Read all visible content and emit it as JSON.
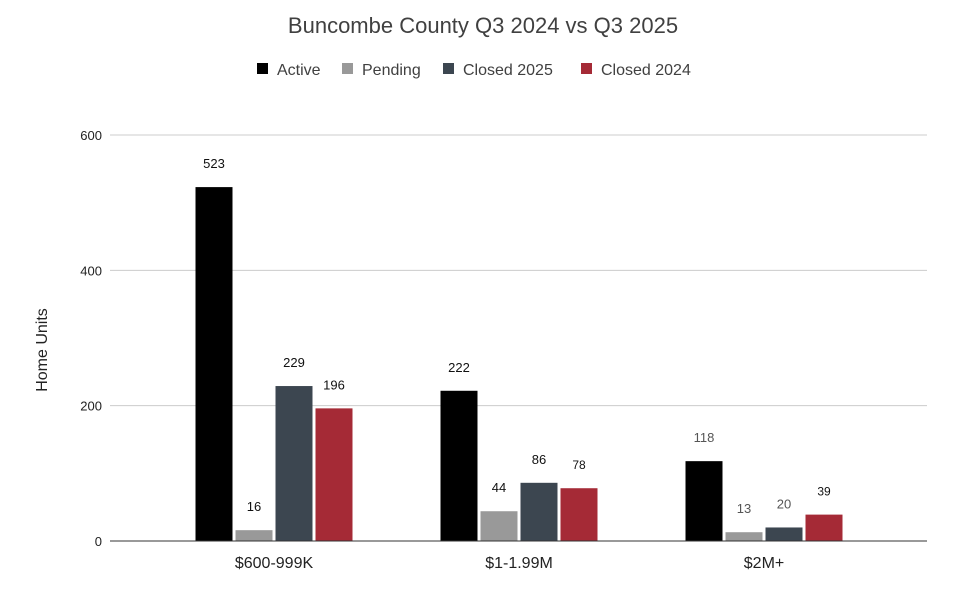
{
  "chart_data": {
    "type": "bar",
    "title": "Buncombe County Q3 2024 vs Q3 2025",
    "ylabel": "Home Units",
    "xlabel": "",
    "ylim": [
      0,
      600
    ],
    "yticks": [
      0,
      200,
      400,
      600
    ],
    "grid": true,
    "legend_position": "top",
    "categories": [
      "$600-999K",
      "$1-1.99M",
      "$2M+"
    ],
    "series": [
      {
        "name": "Active",
        "color": "#000000",
        "values": [
          523,
          222,
          118
        ]
      },
      {
        "name": "Pending",
        "color": "#999999",
        "values": [
          16,
          44,
          13
        ]
      },
      {
        "name": "Closed 2025",
        "color": "#3c4650",
        "values": [
          229,
          86,
          20
        ]
      },
      {
        "name": "Closed 2024",
        "color": "#a52a36",
        "values": [
          196,
          78,
          39
        ]
      }
    ],
    "tick_labels": [
      "0",
      "200",
      "400",
      "600"
    ],
    "data_labels": [
      [
        "523",
        "16",
        "229",
        "196"
      ],
      [
        "222",
        "44",
        "86",
        "78"
      ],
      [
        "118",
        "13",
        "20",
        "39"
      ]
    ]
  }
}
